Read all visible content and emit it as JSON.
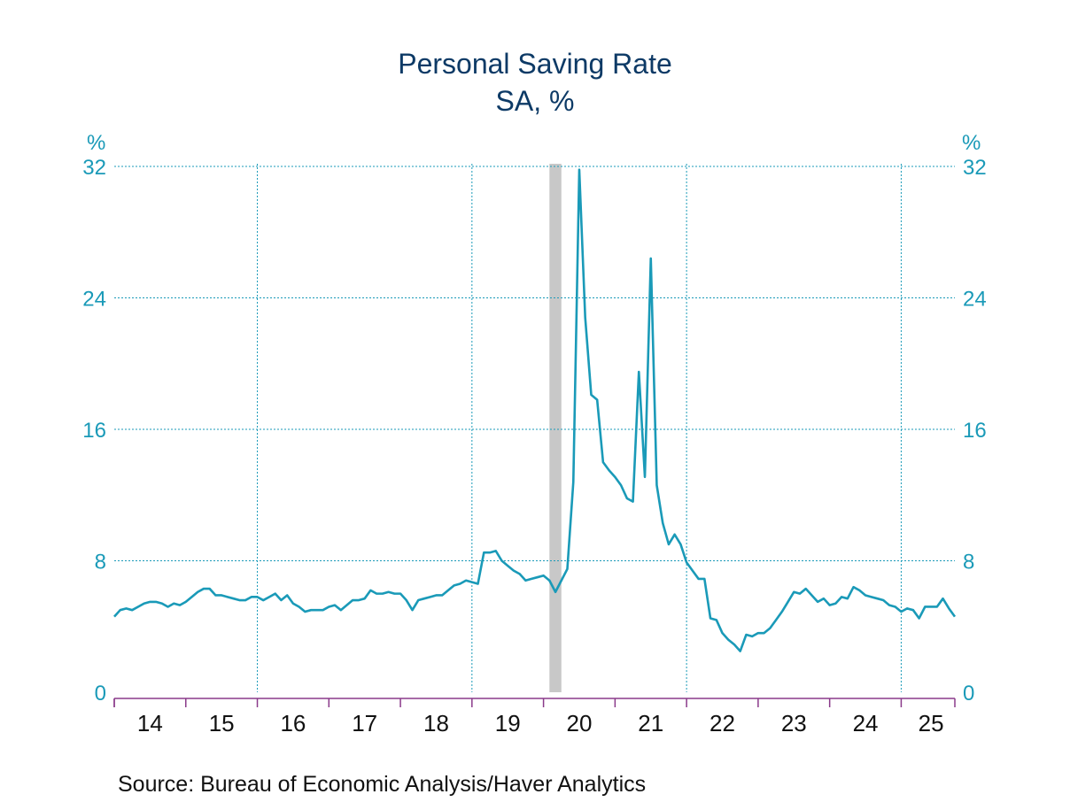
{
  "chart_data": {
    "type": "line",
    "title": "Personal Saving Rate",
    "subtitle": "SA, %",
    "ylabel_left": "%",
    "ylabel_right": "%",
    "ylim": [
      0,
      32
    ],
    "yticks": [
      "0",
      "8",
      "16",
      "24",
      "32"
    ],
    "xlim": [
      2014.0,
      2025.75
    ],
    "xtick_labels": [
      "14",
      "15",
      "16",
      "17",
      "18",
      "19",
      "20",
      "21",
      "22",
      "23",
      "24",
      "25"
    ],
    "grid": true,
    "colors": {
      "line": "#1a9ab8",
      "recession": "#c8c8c8",
      "axis": "#8a3a8a",
      "grid": "#1a9ab8"
    },
    "recession": {
      "start": 2020.083,
      "end": 2020.25
    },
    "series": [
      {
        "values": [
          [
            2014.0,
            4.6
          ],
          [
            2014.083,
            5.0
          ],
          [
            2014.167,
            5.1
          ],
          [
            2014.25,
            5.0
          ],
          [
            2014.333,
            5.2
          ],
          [
            2014.417,
            5.4
          ],
          [
            2014.5,
            5.5
          ],
          [
            2014.583,
            5.5
          ],
          [
            2014.667,
            5.4
          ],
          [
            2014.75,
            5.2
          ],
          [
            2014.833,
            5.4
          ],
          [
            2014.917,
            5.3
          ],
          [
            2015.0,
            5.5
          ],
          [
            2015.083,
            5.8
          ],
          [
            2015.167,
            6.1
          ],
          [
            2015.25,
            6.3
          ],
          [
            2015.333,
            6.3
          ],
          [
            2015.417,
            5.9
          ],
          [
            2015.5,
            5.9
          ],
          [
            2015.583,
            5.8
          ],
          [
            2015.667,
            5.7
          ],
          [
            2015.75,
            5.6
          ],
          [
            2015.833,
            5.6
          ],
          [
            2015.917,
            5.8
          ],
          [
            2016.0,
            5.8
          ],
          [
            2016.083,
            5.6
          ],
          [
            2016.167,
            5.8
          ],
          [
            2016.25,
            6.0
          ],
          [
            2016.333,
            5.6
          ],
          [
            2016.417,
            5.9
          ],
          [
            2016.5,
            5.4
          ],
          [
            2016.583,
            5.2
          ],
          [
            2016.667,
            4.9
          ],
          [
            2016.75,
            5.0
          ],
          [
            2016.833,
            5.0
          ],
          [
            2016.917,
            5.0
          ],
          [
            2017.0,
            5.2
          ],
          [
            2017.083,
            5.3
          ],
          [
            2017.167,
            5.0
          ],
          [
            2017.25,
            5.3
          ],
          [
            2017.333,
            5.6
          ],
          [
            2017.417,
            5.6
          ],
          [
            2017.5,
            5.7
          ],
          [
            2017.583,
            6.2
          ],
          [
            2017.667,
            6.0
          ],
          [
            2017.75,
            6.0
          ],
          [
            2017.833,
            6.1
          ],
          [
            2017.917,
            6.0
          ],
          [
            2018.0,
            6.0
          ],
          [
            2018.083,
            5.6
          ],
          [
            2018.167,
            5.0
          ],
          [
            2018.25,
            5.6
          ],
          [
            2018.333,
            5.7
          ],
          [
            2018.417,
            5.8
          ],
          [
            2018.5,
            5.9
          ],
          [
            2018.583,
            5.9
          ],
          [
            2018.667,
            6.2
          ],
          [
            2018.75,
            6.5
          ],
          [
            2018.833,
            6.6
          ],
          [
            2018.917,
            6.8
          ],
          [
            2019.0,
            6.7
          ],
          [
            2019.083,
            6.6
          ],
          [
            2019.167,
            8.5
          ],
          [
            2019.25,
            8.5
          ],
          [
            2019.333,
            8.6
          ],
          [
            2019.417,
            8.0
          ],
          [
            2019.5,
            7.7
          ],
          [
            2019.583,
            7.4
          ],
          [
            2019.667,
            7.2
          ],
          [
            2019.75,
            6.8
          ],
          [
            2019.833,
            6.9
          ],
          [
            2019.917,
            7.0
          ],
          [
            2020.0,
            7.1
          ],
          [
            2020.083,
            6.8
          ],
          [
            2020.167,
            6.1
          ],
          [
            2020.25,
            6.8
          ],
          [
            2020.333,
            7.5
          ],
          [
            2020.417,
            12.8
          ],
          [
            2020.5,
            31.8
          ],
          [
            2020.583,
            22.8
          ],
          [
            2020.667,
            18.1
          ],
          [
            2020.75,
            17.8
          ],
          [
            2020.833,
            14.0
          ],
          [
            2020.917,
            13.5
          ],
          [
            2021.0,
            13.1
          ],
          [
            2021.083,
            12.6
          ],
          [
            2021.167,
            11.8
          ],
          [
            2021.25,
            11.6
          ],
          [
            2021.333,
            19.5
          ],
          [
            2021.417,
            13.1
          ],
          [
            2021.5,
            26.4
          ],
          [
            2021.583,
            12.6
          ],
          [
            2021.667,
            10.3
          ],
          [
            2021.75,
            9.0
          ],
          [
            2021.833,
            9.6
          ],
          [
            2021.917,
            9.0
          ],
          [
            2022.0,
            7.9
          ],
          [
            2022.083,
            7.4
          ],
          [
            2022.167,
            6.9
          ],
          [
            2022.25,
            6.9
          ],
          [
            2022.333,
            4.5
          ],
          [
            2022.417,
            4.4
          ],
          [
            2022.5,
            3.6
          ],
          [
            2022.583,
            3.2
          ],
          [
            2022.667,
            2.9
          ],
          [
            2022.75,
            2.5
          ],
          [
            2022.833,
            3.5
          ],
          [
            2022.917,
            3.4
          ],
          [
            2023.0,
            3.6
          ],
          [
            2023.083,
            3.6
          ],
          [
            2023.167,
            3.9
          ],
          [
            2023.25,
            4.4
          ],
          [
            2023.333,
            4.9
          ],
          [
            2023.417,
            5.5
          ],
          [
            2023.5,
            6.1
          ],
          [
            2023.583,
            6.0
          ],
          [
            2023.667,
            6.3
          ],
          [
            2023.75,
            5.9
          ],
          [
            2023.833,
            5.5
          ],
          [
            2023.917,
            5.7
          ],
          [
            2024.0,
            5.3
          ],
          [
            2024.083,
            5.4
          ],
          [
            2024.167,
            5.8
          ],
          [
            2024.25,
            5.7
          ],
          [
            2024.333,
            6.4
          ],
          [
            2024.417,
            6.2
          ],
          [
            2024.5,
            5.9
          ],
          [
            2024.583,
            5.8
          ],
          [
            2024.667,
            5.7
          ],
          [
            2024.75,
            5.6
          ],
          [
            2024.833,
            5.3
          ],
          [
            2024.917,
            5.2
          ],
          [
            2025.0,
            4.9
          ],
          [
            2025.083,
            5.1
          ],
          [
            2025.167,
            5.0
          ],
          [
            2025.25,
            4.5
          ],
          [
            2025.333,
            5.2
          ],
          [
            2025.417,
            5.2
          ],
          [
            2025.5,
            5.2
          ],
          [
            2025.583,
            5.7
          ],
          [
            2025.667,
            5.1
          ],
          [
            2025.75,
            4.6
          ]
        ]
      }
    ]
  },
  "source": "Source:  Bureau of Economic Analysis/Haver Analytics"
}
